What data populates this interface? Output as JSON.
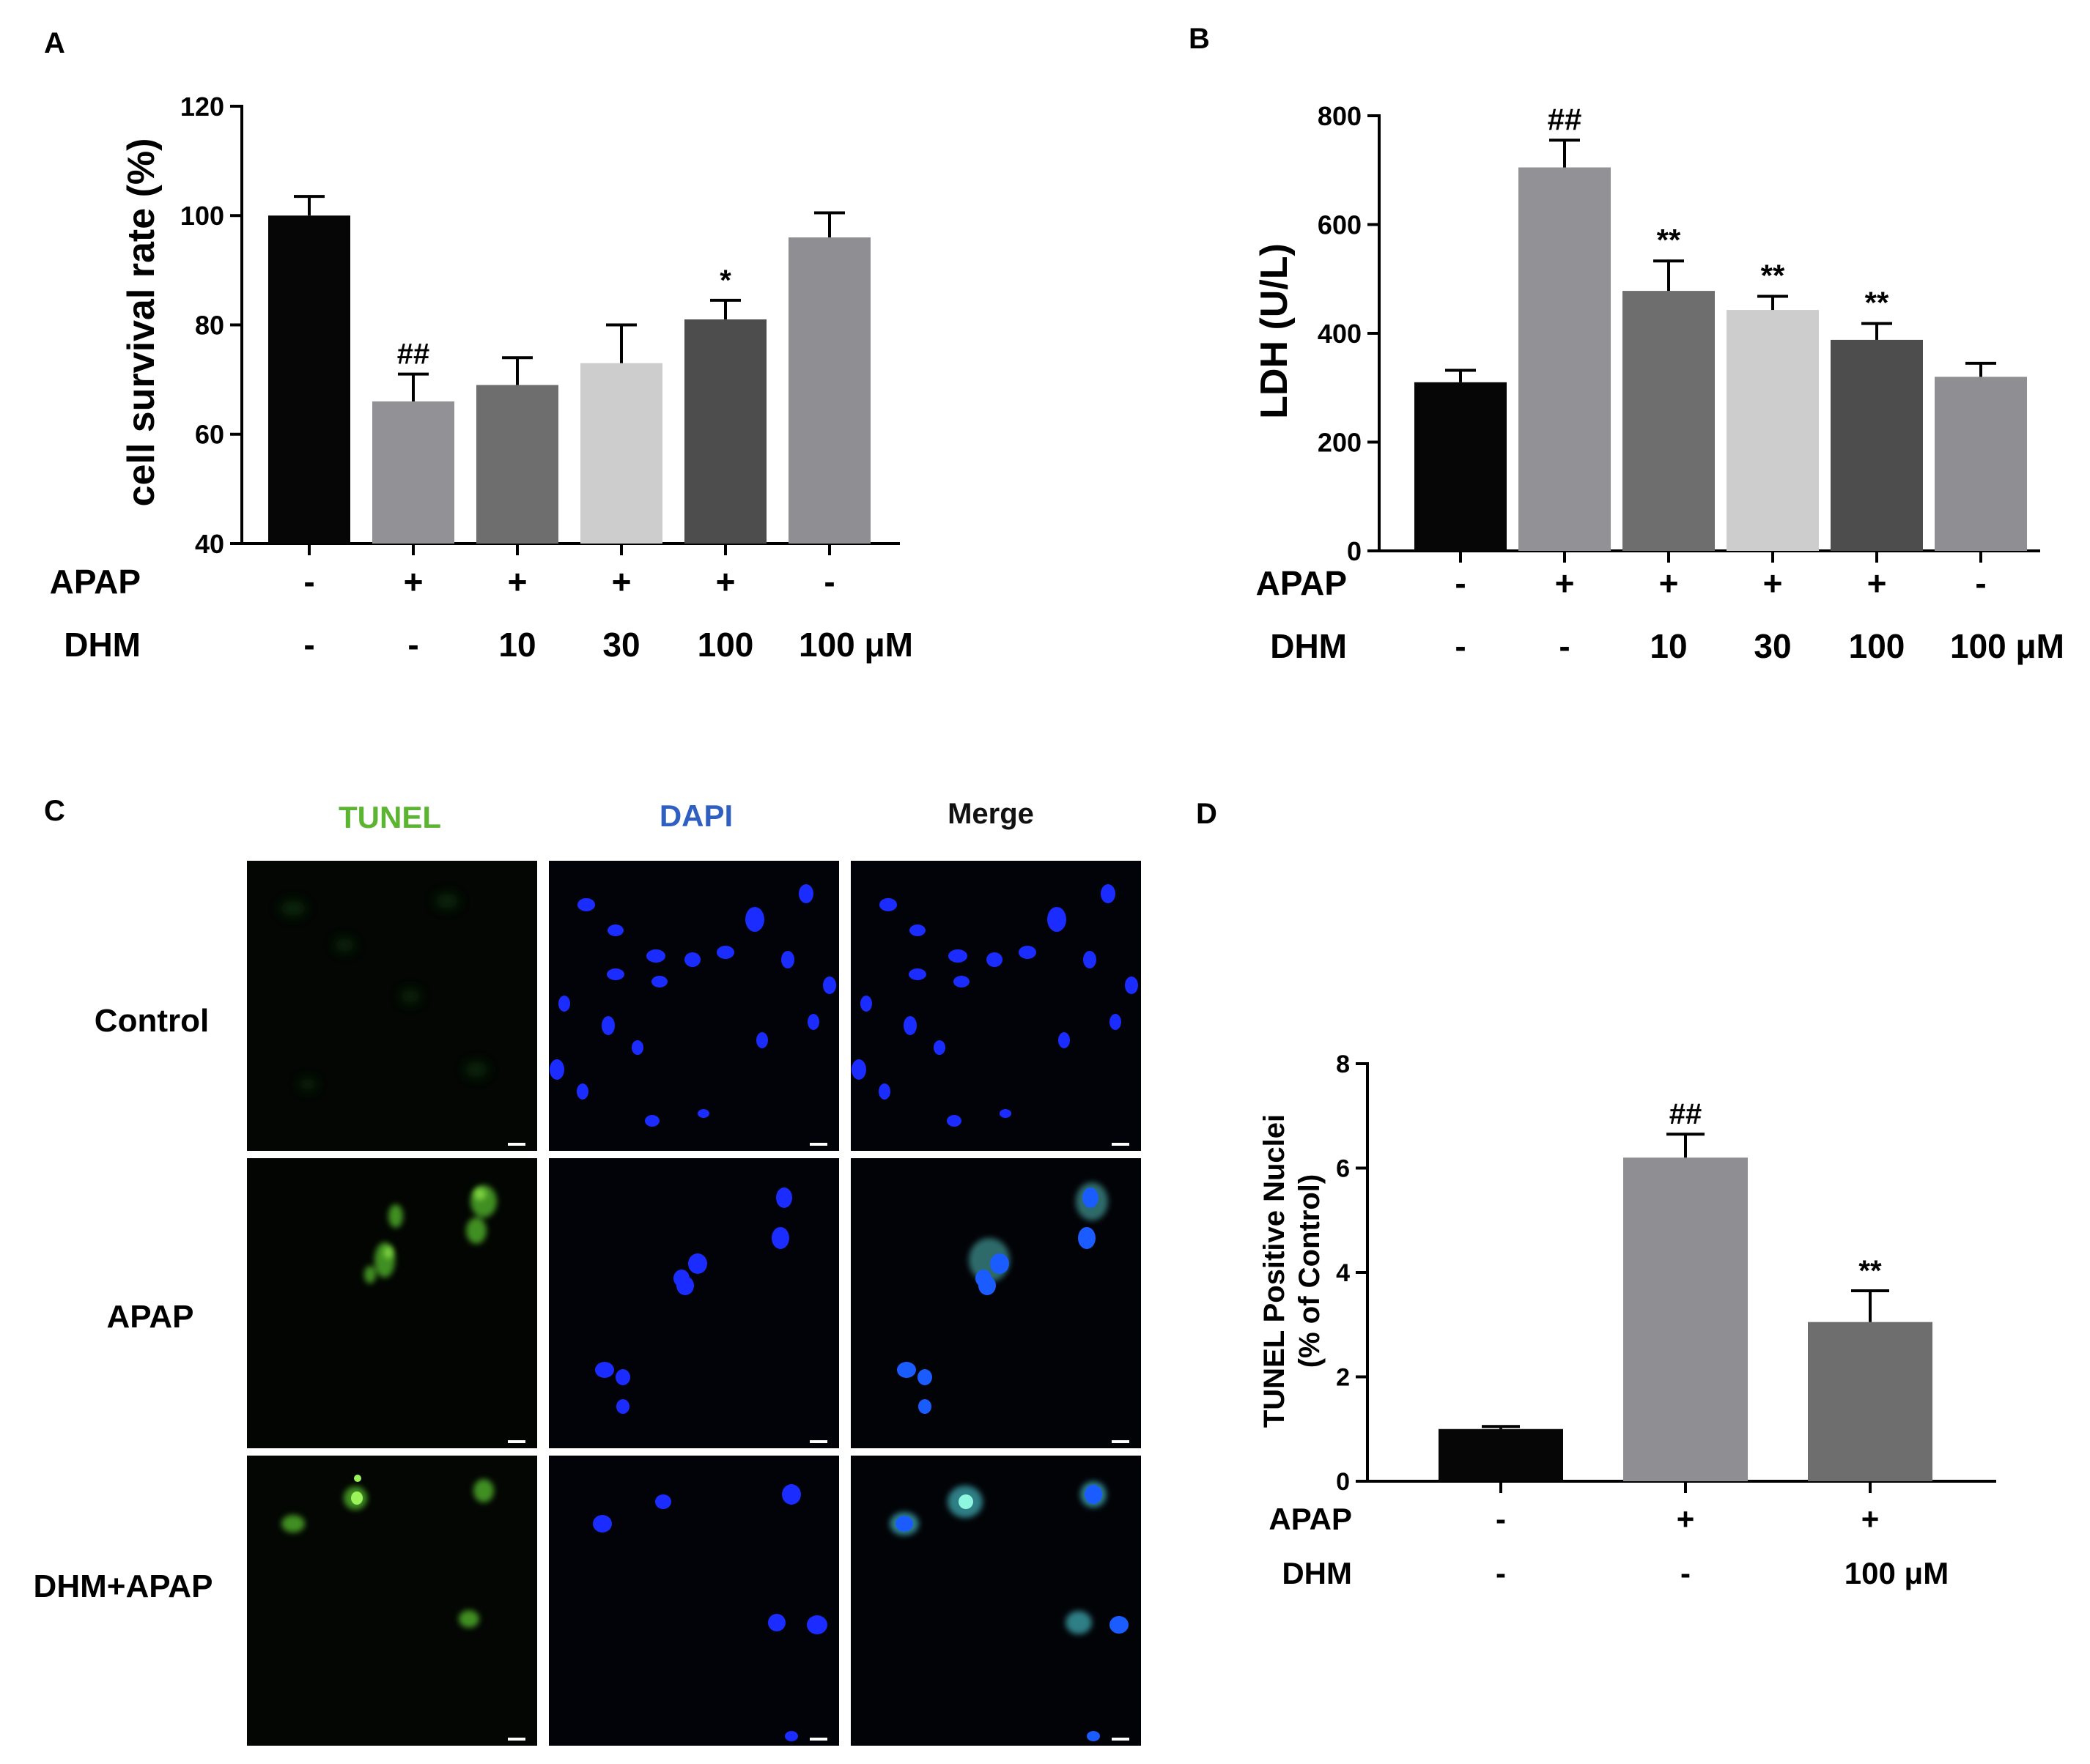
{
  "panels": {
    "A": "A",
    "B": "B",
    "C": "C",
    "D": "D"
  },
  "colors": {
    "black": "#060606",
    "mid_gray": "#929196",
    "dark_gray": "#6e6e6e",
    "light_gray": "#cdcdcd",
    "charcoal": "#4d4d4d",
    "gray": "#8e8e93",
    "tunel_green": "#5cb531",
    "dapi_blue": "#2e5fc1"
  },
  "chart_data": [
    {
      "panel": "A",
      "type": "bar",
      "ylabel": "cell survival rate (%)",
      "ylim": [
        40,
        120
      ],
      "yticks": [
        40,
        60,
        80,
        100,
        120
      ],
      "values": [
        100,
        66,
        69,
        73,
        81,
        96
      ],
      "errors": [
        3.5,
        5,
        5,
        7,
        3.5,
        4.5
      ],
      "annotations": [
        "",
        "##",
        "",
        "",
        "*",
        ""
      ],
      "bar_colors": [
        "black",
        "mid_gray",
        "dark_gray",
        "light_gray",
        "charcoal",
        "gray"
      ],
      "condition_rows": [
        {
          "label": "APAP",
          "values": [
            "-",
            "+",
            "+",
            "+",
            "+",
            "-"
          ]
        },
        {
          "label": "DHM",
          "values": [
            "-",
            "-",
            "10",
            "30",
            "100",
            "100 μM"
          ]
        }
      ]
    },
    {
      "panel": "B",
      "type": "bar",
      "ylabel": "LDH  (U/L)",
      "ylim": [
        0,
        800
      ],
      "yticks": [
        0,
        200,
        400,
        600,
        800
      ],
      "values": [
        310,
        705,
        478,
        443,
        388,
        320
      ],
      "errors": [
        22,
        50,
        55,
        25,
        30,
        25
      ],
      "annotations": [
        "",
        "##",
        "**",
        "**",
        "**",
        ""
      ],
      "bar_colors": [
        "black",
        "mid_gray",
        "dark_gray",
        "light_gray",
        "charcoal",
        "gray"
      ],
      "condition_rows": [
        {
          "label": "APAP",
          "values": [
            "-",
            "+",
            "+",
            "+",
            "+",
            "-"
          ]
        },
        {
          "label": "DHM",
          "values": [
            "-",
            "-",
            "10",
            "30",
            "100",
            "100 μM"
          ]
        }
      ]
    },
    {
      "panel": "D",
      "type": "bar",
      "ylabel": "TUNEL Positive Nuclei",
      "ylabel2": "(% of Control)",
      "ylim": [
        0,
        8
      ],
      "yticks": [
        0,
        2,
        4,
        6,
        8
      ],
      "values": [
        1.0,
        6.2,
        3.05
      ],
      "errors": [
        0.05,
        0.45,
        0.6
      ],
      "annotations": [
        "",
        "##",
        "**"
      ],
      "bar_colors": [
        "black",
        "gray",
        "dark_gray"
      ],
      "condition_rows": [
        {
          "label": "APAP",
          "values": [
            "-",
            "+",
            "+"
          ]
        },
        {
          "label": "DHM",
          "values": [
            "-",
            "-",
            "100 μM"
          ]
        }
      ]
    }
  ],
  "micrograph_panel": {
    "column_headers": [
      "TUNEL",
      "DAPI",
      "Merge"
    ],
    "row_labels": [
      "Control",
      "APAP",
      "DHM+APAP"
    ]
  }
}
